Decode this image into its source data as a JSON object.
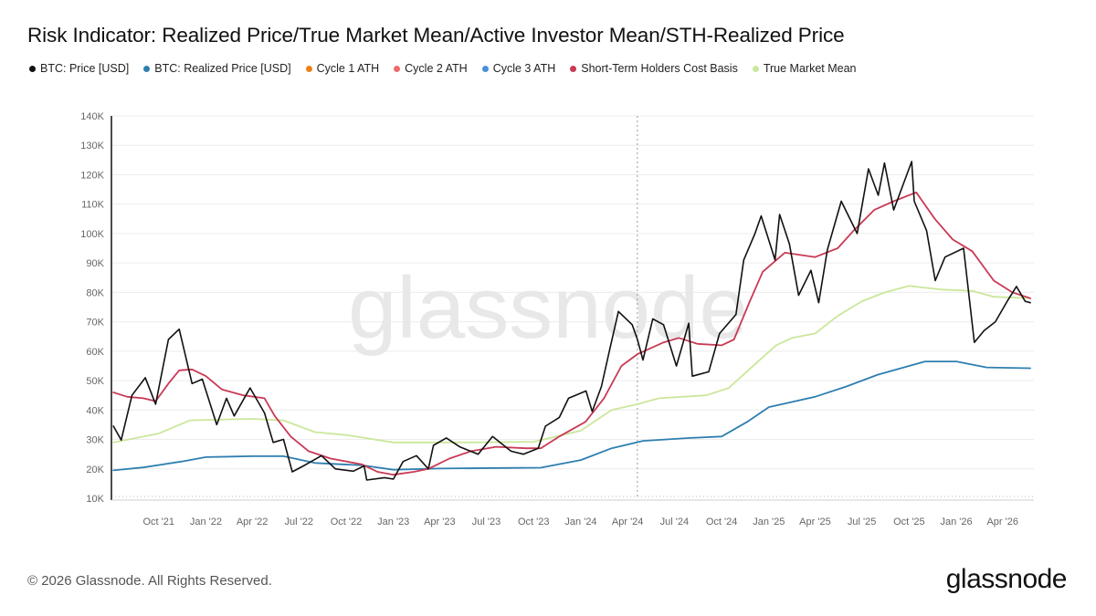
{
  "title": "Risk Indicator: Realized Price/True Market Mean/Active Investor Mean/STH-Realized Price",
  "footer": {
    "copyright": "© 2026 Glassnode. All Rights Reserved.",
    "logo": "glassnode",
    "watermark": "glassnode"
  },
  "chart_data": {
    "type": "line",
    "ylim": [
      10000,
      140000
    ],
    "yticks": [
      10000,
      20000,
      30000,
      40000,
      50000,
      60000,
      70000,
      80000,
      90000,
      100000,
      110000,
      120000,
      130000,
      140000
    ],
    "ytick_labels": [
      "10K",
      "20K",
      "30K",
      "40K",
      "50K",
      "60K",
      "70K",
      "80K",
      "90K",
      "100K",
      "110K",
      "120K",
      "130K",
      "140K"
    ],
    "xlim": [
      "2021-07-01",
      "2026-06-01"
    ],
    "xticks": [
      "2021-10-01",
      "2022-01-01",
      "2022-04-01",
      "2022-07-01",
      "2022-10-01",
      "2023-01-01",
      "2023-04-01",
      "2023-07-01",
      "2023-10-01",
      "2024-01-01",
      "2024-04-01",
      "2024-07-01",
      "2024-10-01",
      "2025-01-01",
      "2025-04-01",
      "2025-07-01",
      "2025-10-01",
      "2026-01-01",
      "2026-04-01"
    ],
    "xtick_labels": [
      "Oct '21",
      "Jan '22",
      "Apr '22",
      "Jul '22",
      "Oct '22",
      "Jan '23",
      "Apr '23",
      "Jul '23",
      "Oct '23",
      "Jan '24",
      "Apr '24",
      "Jul '24",
      "Oct '24",
      "Jan '25",
      "Apr '25",
      "Jul '25",
      "Oct '25",
      "Jan '26",
      "Apr '26"
    ],
    "vertical_marker": "2024-04-20",
    "series": [
      {
        "name": "BTC: Price [USD]",
        "color": "#111111",
        "points": [
          [
            "2021-07-05",
            34500
          ],
          [
            "2021-07-20",
            29800
          ],
          [
            "2021-08-10",
            45000
          ],
          [
            "2021-09-05",
            51000
          ],
          [
            "2021-09-25",
            42000
          ],
          [
            "2021-10-20",
            64000
          ],
          [
            "2021-11-10",
            67500
          ],
          [
            "2021-12-05",
            49000
          ],
          [
            "2021-12-25",
            50500
          ],
          [
            "2022-01-22",
            35000
          ],
          [
            "2022-02-10",
            44000
          ],
          [
            "2022-02-25",
            38000
          ],
          [
            "2022-03-28",
            47500
          ],
          [
            "2022-04-25",
            39000
          ],
          [
            "2022-05-12",
            29000
          ],
          [
            "2022-06-01",
            30000
          ],
          [
            "2022-06-18",
            19000
          ],
          [
            "2022-07-10",
            21000
          ],
          [
            "2022-08-14",
            24500
          ],
          [
            "2022-09-10",
            20000
          ],
          [
            "2022-10-15",
            19200
          ],
          [
            "2022-11-05",
            21000
          ],
          [
            "2022-11-10",
            16200
          ],
          [
            "2022-12-15",
            17000
          ],
          [
            "2023-01-01",
            16500
          ],
          [
            "2023-01-20",
            22500
          ],
          [
            "2023-02-15",
            24500
          ],
          [
            "2023-03-10",
            20000
          ],
          [
            "2023-03-20",
            28000
          ],
          [
            "2023-04-14",
            30500
          ],
          [
            "2023-05-10",
            27500
          ],
          [
            "2023-06-15",
            25000
          ],
          [
            "2023-07-13",
            31000
          ],
          [
            "2023-08-18",
            26000
          ],
          [
            "2023-09-11",
            25000
          ],
          [
            "2023-10-10",
            27000
          ],
          [
            "2023-10-24",
            34500
          ],
          [
            "2023-11-20",
            37500
          ],
          [
            "2023-12-08",
            44000
          ],
          [
            "2024-01-11",
            46500
          ],
          [
            "2024-01-23",
            39500
          ],
          [
            "2024-02-10",
            48000
          ],
          [
            "2024-02-28",
            62000
          ],
          [
            "2024-03-14",
            73500
          ],
          [
            "2024-04-10",
            69000
          ],
          [
            "2024-04-20",
            64000
          ],
          [
            "2024-05-01",
            57000
          ],
          [
            "2024-05-20",
            71000
          ],
          [
            "2024-06-10",
            69000
          ],
          [
            "2024-07-05",
            55000
          ],
          [
            "2024-07-29",
            69500
          ],
          [
            "2024-08-05",
            51500
          ],
          [
            "2024-09-06",
            53000
          ],
          [
            "2024-09-27",
            66000
          ],
          [
            "2024-10-29",
            72500
          ],
          [
            "2024-11-13",
            91000
          ],
          [
            "2024-12-05",
            100000
          ],
          [
            "2024-12-17",
            106000
          ],
          [
            "2025-01-13",
            91000
          ],
          [
            "2025-01-22",
            106500
          ],
          [
            "2025-02-10",
            96500
          ],
          [
            "2025-02-28",
            79000
          ],
          [
            "2025-03-24",
            87500
          ],
          [
            "2025-04-08",
            76500
          ],
          [
            "2025-04-25",
            94500
          ],
          [
            "2025-05-22",
            111000
          ],
          [
            "2025-06-22",
            100000
          ],
          [
            "2025-07-14",
            122000
          ],
          [
            "2025-08-02",
            113000
          ],
          [
            "2025-08-14",
            124000
          ],
          [
            "2025-09-01",
            108000
          ],
          [
            "2025-10-06",
            124500
          ],
          [
            "2025-10-11",
            111000
          ],
          [
            "2025-11-04",
            101000
          ],
          [
            "2025-11-21",
            84000
          ],
          [
            "2025-12-10",
            92000
          ],
          [
            "2026-01-15",
            95000
          ],
          [
            "2026-02-05",
            63000
          ],
          [
            "2026-02-24",
            67000
          ],
          [
            "2026-03-18",
            70000
          ],
          [
            "2026-04-10",
            77000
          ],
          [
            "2026-04-28",
            82000
          ],
          [
            "2026-05-15",
            77000
          ],
          [
            "2026-05-25",
            76500
          ]
        ]
      },
      {
        "name": "BTC: Realized Price [USD]",
        "color": "#2e7fb0",
        "points": [
          [
            "2021-07-05",
            19500
          ],
          [
            "2021-09-01",
            20500
          ],
          [
            "2021-11-15",
            22500
          ],
          [
            "2022-01-01",
            24000
          ],
          [
            "2022-04-01",
            24300
          ],
          [
            "2022-06-01",
            24300
          ],
          [
            "2022-08-01",
            22000
          ],
          [
            "2022-11-01",
            21200
          ],
          [
            "2023-01-01",
            19700
          ],
          [
            "2023-04-01",
            20100
          ],
          [
            "2023-08-01",
            20300
          ],
          [
            "2023-10-15",
            20400
          ],
          [
            "2024-01-01",
            23000
          ],
          [
            "2024-03-01",
            27000
          ],
          [
            "2024-05-01",
            29500
          ],
          [
            "2024-08-01",
            30500
          ],
          [
            "2024-10-01",
            31000
          ],
          [
            "2024-11-20",
            36000
          ],
          [
            "2025-01-01",
            41000
          ],
          [
            "2025-04-01",
            44500
          ],
          [
            "2025-06-01",
            48000
          ],
          [
            "2025-08-01",
            52000
          ],
          [
            "2025-10-01",
            55000
          ],
          [
            "2025-11-01",
            56500
          ],
          [
            "2026-01-01",
            56500
          ],
          [
            "2026-03-01",
            54500
          ],
          [
            "2026-05-25",
            54200
          ]
        ]
      },
      {
        "name": "Cycle 1 ATH",
        "color": "#f07f14",
        "points": []
      },
      {
        "name": "Cycle 2 ATH",
        "color": "#ef6b6b",
        "points": []
      },
      {
        "name": "Cycle 3 ATH",
        "color": "#4a90d9",
        "points": []
      },
      {
        "name": "Short-Term Holders Cost Basis",
        "color": "#c93a55",
        "points": [
          [
            "2021-07-05",
            46000
          ],
          [
            "2021-08-01",
            44500
          ],
          [
            "2021-09-01",
            44000
          ],
          [
            "2021-09-25",
            43000
          ],
          [
            "2021-10-20",
            49000
          ],
          [
            "2021-11-10",
            53500
          ],
          [
            "2021-12-05",
            53800
          ],
          [
            "2022-01-01",
            51500
          ],
          [
            "2022-02-01",
            47000
          ],
          [
            "2022-03-15",
            45000
          ],
          [
            "2022-04-25",
            44000
          ],
          [
            "2022-05-15",
            38000
          ],
          [
            "2022-06-15",
            31000
          ],
          [
            "2022-07-20",
            26000
          ],
          [
            "2022-09-01",
            23500
          ],
          [
            "2022-11-01",
            21500
          ],
          [
            "2022-12-01",
            19000
          ],
          [
            "2023-01-01",
            18000
          ],
          [
            "2023-02-10",
            19000
          ],
          [
            "2023-03-10",
            20000
          ],
          [
            "2023-04-20",
            23500
          ],
          [
            "2023-06-01",
            26000
          ],
          [
            "2023-07-20",
            27500
          ],
          [
            "2023-09-15",
            27000
          ],
          [
            "2023-10-15",
            27000
          ],
          [
            "2023-11-20",
            31000
          ],
          [
            "2024-01-10",
            36000
          ],
          [
            "2024-02-15",
            44000
          ],
          [
            "2024-03-20",
            55000
          ],
          [
            "2024-04-20",
            59000
          ],
          [
            "2024-06-10",
            63000
          ],
          [
            "2024-07-10",
            64500
          ],
          [
            "2024-08-15",
            62500
          ],
          [
            "2024-10-01",
            62000
          ],
          [
            "2024-10-25",
            64000
          ],
          [
            "2024-11-25",
            77000
          ],
          [
            "2024-12-20",
            87000
          ],
          [
            "2025-02-01",
            93500
          ],
          [
            "2025-04-01",
            92000
          ],
          [
            "2025-05-15",
            95000
          ],
          [
            "2025-06-15",
            101000
          ],
          [
            "2025-07-25",
            108000
          ],
          [
            "2025-09-01",
            111000
          ],
          [
            "2025-10-15",
            114000
          ],
          [
            "2025-11-20",
            105000
          ],
          [
            "2025-12-25",
            98000
          ],
          [
            "2026-02-01",
            94000
          ],
          [
            "2026-03-15",
            84000
          ],
          [
            "2026-04-20",
            80000
          ],
          [
            "2026-05-25",
            78000
          ]
        ]
      },
      {
        "name": "True Market Mean",
        "color": "#cbe79b",
        "points": [
          [
            "2021-07-05",
            29000
          ],
          [
            "2021-10-01",
            32000
          ],
          [
            "2021-12-01",
            36500
          ],
          [
            "2022-04-01",
            37000
          ],
          [
            "2022-06-01",
            36500
          ],
          [
            "2022-08-01",
            32500
          ],
          [
            "2022-10-01",
            31500
          ],
          [
            "2023-01-01",
            29000
          ],
          [
            "2023-06-01",
            29000
          ],
          [
            "2023-10-01",
            29200
          ],
          [
            "2024-01-01",
            33000
          ],
          [
            "2024-03-01",
            40000
          ],
          [
            "2024-04-20",
            42000
          ],
          [
            "2024-06-01",
            44000
          ],
          [
            "2024-09-01",
            45000
          ],
          [
            "2024-10-15",
            47500
          ],
          [
            "2024-11-25",
            54000
          ],
          [
            "2025-01-15",
            62000
          ],
          [
            "2025-02-15",
            64500
          ],
          [
            "2025-04-01",
            66000
          ],
          [
            "2025-05-15",
            72000
          ],
          [
            "2025-07-01",
            77000
          ],
          [
            "2025-08-15",
            80000
          ],
          [
            "2025-10-01",
            82200
          ],
          [
            "2025-12-01",
            81000
          ],
          [
            "2026-02-01",
            80500
          ],
          [
            "2026-03-15",
            78500
          ],
          [
            "2026-05-25",
            78000
          ]
        ]
      }
    ]
  }
}
